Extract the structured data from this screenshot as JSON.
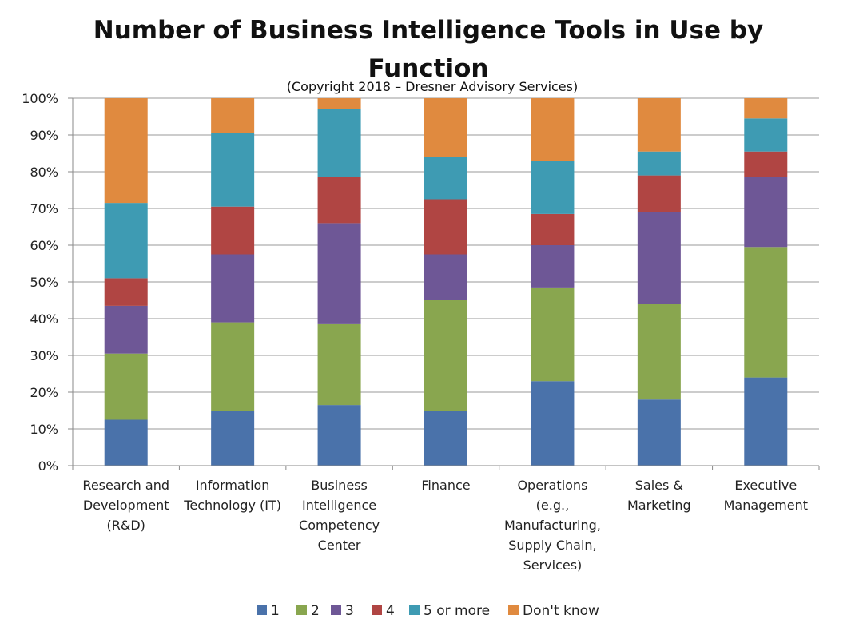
{
  "chart_data": {
    "type": "bar",
    "stacked": true,
    "title": "Number of Business Intelligence Tools in Use by Function",
    "subtitle": "(Copyright 2018 – Dresner Advisory Services)",
    "xlabel": "",
    "ylabel": "",
    "ylim": [
      0,
      100
    ],
    "yticks": [
      "0%",
      "10%",
      "20%",
      "30%",
      "40%",
      "50%",
      "60%",
      "70%",
      "80%",
      "90%",
      "100%"
    ],
    "grid": true,
    "legend_position": "bottom",
    "categories": [
      "Research and Development (R&D)",
      "Information Technology (IT)",
      "Business Intelligence Competency Center",
      "Finance",
      "Operations (e.g., Manufacturing, Supply Chain, Services)",
      "Sales & Marketing",
      "Executive Management"
    ],
    "category_lines": [
      [
        "Research and",
        "Development",
        "(R&D)"
      ],
      [
        "Information",
        "Technology (IT)"
      ],
      [
        "Business",
        "Intelligence",
        "Competency",
        "Center"
      ],
      [
        "Finance"
      ],
      [
        "Operations",
        "(e.g.,",
        "Manufacturing,",
        "Supply Chain,",
        "Services)"
      ],
      [
        "Sales &",
        "Marketing"
      ],
      [
        "Executive",
        "Management"
      ]
    ],
    "series": [
      {
        "name": "1",
        "color": "#4a72aa",
        "values": [
          12.5,
          15,
          16.5,
          15,
          23,
          18,
          24
        ]
      },
      {
        "name": "2",
        "color": "#89a64f",
        "values": [
          18,
          24,
          22,
          30,
          25.5,
          26,
          35.5
        ]
      },
      {
        "name": "3",
        "color": "#6e5796",
        "values": [
          13,
          18.5,
          27.5,
          12.5,
          11.5,
          25,
          19
        ]
      },
      {
        "name": "4",
        "color": "#b04543",
        "values": [
          7.5,
          13,
          12.5,
          15,
          8.5,
          10,
          7
        ]
      },
      {
        "name": "5 or more",
        "color": "#3e9bb3",
        "values": [
          20.5,
          20,
          18.5,
          11.5,
          14.5,
          6.5,
          9
        ]
      },
      {
        "name": "Don't know",
        "color": "#e08a3f",
        "values": [
          28.5,
          9.5,
          3,
          16,
          17,
          14.5,
          5.5
        ]
      }
    ]
  }
}
